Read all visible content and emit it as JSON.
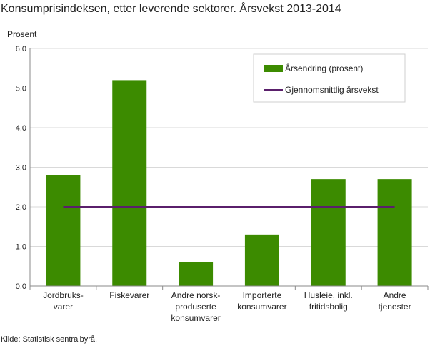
{
  "title": "Konsumprisindeksen, etter leverende sektorer. Årsvekst 2013-2014",
  "source": "Kilde: Statistisk sentralbyrå.",
  "colors": {
    "bar": "#3c8b00",
    "line": "#5a1f6b",
    "grid": "#d9d9d9",
    "axis": "#8a8a8a"
  },
  "chart_data": {
    "type": "bar",
    "ylabel": "Prosent",
    "ylim": [
      0,
      6
    ],
    "yticks": [
      "0,0",
      "1,0",
      "2,0",
      "3,0",
      "4,0",
      "5,0",
      "6,0"
    ],
    "categories": [
      [
        "Jordbruks-",
        "varer"
      ],
      [
        "Fiskevarer"
      ],
      [
        "Andre norsk-",
        "produserte",
        "konsumvarer"
      ],
      [
        "Importerte",
        "konsumvarer"
      ],
      [
        "Husleie, inkl.",
        "fritidsbolig"
      ],
      [
        "Andre",
        "tjenester"
      ]
    ],
    "series": [
      {
        "name": "Årsendring (prosent)",
        "type": "bar",
        "values": [
          2.8,
          5.2,
          0.6,
          1.3,
          2.7,
          2.7
        ]
      },
      {
        "name": "Gjennomsnittlig årsvekst",
        "type": "line",
        "values": [
          2.0,
          2.0,
          2.0,
          2.0,
          2.0,
          2.0
        ]
      }
    ],
    "grid": true,
    "legend_position": "top-right"
  }
}
